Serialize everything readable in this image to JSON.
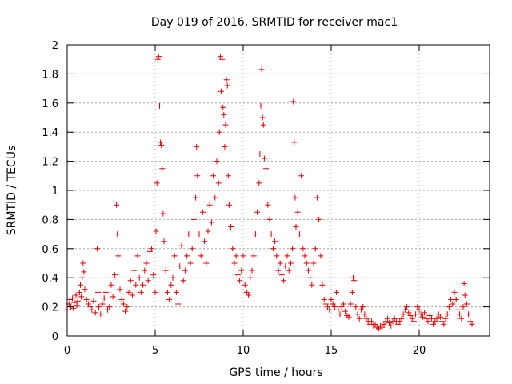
{
  "chart_data": {
    "type": "scatter",
    "title": "Day 019 of 2016, SRMTID for receiver mac1",
    "xlabel": "GPS time / hours",
    "ylabel": "SRMTID / TECUs",
    "xlim": [
      0,
      24
    ],
    "ylim": [
      0,
      2
    ],
    "xticks": [
      0,
      5,
      10,
      15,
      20
    ],
    "xtick_labels": [
      "0",
      "5",
      "10",
      "15",
      "20"
    ],
    "yticks": [
      0,
      0.2,
      0.4,
      0.6,
      0.8,
      1.0,
      1.2,
      1.4,
      1.6,
      1.8,
      2.0
    ],
    "ytick_labels": [
      "0",
      "0.2",
      "0.4",
      "0.6",
      "0.8",
      "1",
      "1.2",
      "1.4",
      "1.6",
      "1.8",
      "2"
    ],
    "grid": true,
    "marker": "+",
    "color": "#e00000",
    "series": [
      {
        "name": "SRMTID",
        "points": [
          [
            0.0,
            0.18
          ],
          [
            0.1,
            0.22
          ],
          [
            0.15,
            0.25
          ],
          [
            0.2,
            0.2
          ],
          [
            0.3,
            0.26
          ],
          [
            0.35,
            0.19
          ],
          [
            0.4,
            0.23
          ],
          [
            0.5,
            0.28
          ],
          [
            0.55,
            0.21
          ],
          [
            0.6,
            0.24
          ],
          [
            0.7,
            0.3
          ],
          [
            0.75,
            0.35
          ],
          [
            0.8,
            0.27
          ],
          [
            0.85,
            0.4
          ],
          [
            0.9,
            0.5
          ],
          [
            0.95,
            0.44
          ],
          [
            1.0,
            0.32
          ],
          [
            1.1,
            0.25
          ],
          [
            1.2,
            0.22
          ],
          [
            1.3,
            0.2
          ],
          [
            1.4,
            0.18
          ],
          [
            1.5,
            0.24
          ],
          [
            1.6,
            0.16
          ],
          [
            1.7,
            0.6
          ],
          [
            1.75,
            0.3
          ],
          [
            1.8,
            0.2
          ],
          [
            1.9,
            0.15
          ],
          [
            2.0,
            0.22
          ],
          [
            2.1,
            0.26
          ],
          [
            2.2,
            0.3
          ],
          [
            2.3,
            0.18
          ],
          [
            2.4,
            0.2
          ],
          [
            2.5,
            0.35
          ],
          [
            2.6,
            0.27
          ],
          [
            2.7,
            0.42
          ],
          [
            2.8,
            0.9
          ],
          [
            2.85,
            0.7
          ],
          [
            2.9,
            0.55
          ],
          [
            3.0,
            0.32
          ],
          [
            3.1,
            0.25
          ],
          [
            3.2,
            0.22
          ],
          [
            3.3,
            0.17
          ],
          [
            3.4,
            0.2
          ],
          [
            3.5,
            0.3
          ],
          [
            3.6,
            0.38
          ],
          [
            3.7,
            0.28
          ],
          [
            3.8,
            0.45
          ],
          [
            3.9,
            0.35
          ],
          [
            4.0,
            0.55
          ],
          [
            4.1,
            0.4
          ],
          [
            4.2,
            0.3
          ],
          [
            4.3,
            0.35
          ],
          [
            4.4,
            0.45
          ],
          [
            4.5,
            0.5
          ],
          [
            4.6,
            0.38
          ],
          [
            4.7,
            0.58
          ],
          [
            4.8,
            0.6
          ],
          [
            4.9,
            0.42
          ],
          [
            5.0,
            0.3
          ],
          [
            5.05,
            0.72
          ],
          [
            5.1,
            1.05
          ],
          [
            5.15,
            1.9
          ],
          [
            5.2,
            1.92
          ],
          [
            5.25,
            1.58
          ],
          [
            5.3,
            1.33
          ],
          [
            5.35,
            1.31
          ],
          [
            5.4,
            1.15
          ],
          [
            5.45,
            0.84
          ],
          [
            5.5,
            0.65
          ],
          [
            5.6,
            0.45
          ],
          [
            5.7,
            0.3
          ],
          [
            5.8,
            0.25
          ],
          [
            5.9,
            0.35
          ],
          [
            6.0,
            0.4
          ],
          [
            6.1,
            0.55
          ],
          [
            6.2,
            0.3
          ],
          [
            6.3,
            0.22
          ],
          [
            6.4,
            0.48
          ],
          [
            6.5,
            0.62
          ],
          [
            6.6,
            0.38
          ],
          [
            6.7,
            0.45
          ],
          [
            6.8,
            0.55
          ],
          [
            6.9,
            0.7
          ],
          [
            7.0,
            0.5
          ],
          [
            7.1,
            0.6
          ],
          [
            7.2,
            0.8
          ],
          [
            7.3,
            0.95
          ],
          [
            7.35,
            1.3
          ],
          [
            7.4,
            1.1
          ],
          [
            7.5,
            0.7
          ],
          [
            7.6,
            0.55
          ],
          [
            7.7,
            0.85
          ],
          [
            7.8,
            0.65
          ],
          [
            7.9,
            0.5
          ],
          [
            8.0,
            0.72
          ],
          [
            8.1,
            0.9
          ],
          [
            8.2,
            0.78
          ],
          [
            8.3,
            1.1
          ],
          [
            8.4,
            0.95
          ],
          [
            8.5,
            1.2
          ],
          [
            8.6,
            1.05
          ],
          [
            8.65,
            1.4
          ],
          [
            8.7,
            1.92
          ],
          [
            8.75,
            1.68
          ],
          [
            8.8,
            1.9
          ],
          [
            8.85,
            1.57
          ],
          [
            8.9,
            1.52
          ],
          [
            8.95,
            1.3
          ],
          [
            9.0,
            1.45
          ],
          [
            9.05,
            1.76
          ],
          [
            9.1,
            1.72
          ],
          [
            9.15,
            1.1
          ],
          [
            9.2,
            0.9
          ],
          [
            9.3,
            0.75
          ],
          [
            9.4,
            0.6
          ],
          [
            9.5,
            0.5
          ],
          [
            9.6,
            0.55
          ],
          [
            9.7,
            0.42
          ],
          [
            9.8,
            0.38
          ],
          [
            9.9,
            0.45
          ],
          [
            10.0,
            0.55
          ],
          [
            10.1,
            0.35
          ],
          [
            10.2,
            0.3
          ],
          [
            10.3,
            0.28
          ],
          [
            10.4,
            0.4
          ],
          [
            10.5,
            0.45
          ],
          [
            10.6,
            0.55
          ],
          [
            10.7,
            0.7
          ],
          [
            10.8,
            0.85
          ],
          [
            10.9,
            1.05
          ],
          [
            10.95,
            1.25
          ],
          [
            11.0,
            1.58
          ],
          [
            11.05,
            1.83
          ],
          [
            11.1,
            1.5
          ],
          [
            11.15,
            1.45
          ],
          [
            11.2,
            1.22
          ],
          [
            11.3,
            1.15
          ],
          [
            11.4,
            0.9
          ],
          [
            11.5,
            0.8
          ],
          [
            11.6,
            0.7
          ],
          [
            11.7,
            0.6
          ],
          [
            11.8,
            0.65
          ],
          [
            11.9,
            0.55
          ],
          [
            12.0,
            0.45
          ],
          [
            12.1,
            0.5
          ],
          [
            12.2,
            0.42
          ],
          [
            12.3,
            0.38
          ],
          [
            12.4,
            0.48
          ],
          [
            12.5,
            0.55
          ],
          [
            12.6,
            0.45
          ],
          [
            12.7,
            0.5
          ],
          [
            12.8,
            0.6
          ],
          [
            12.85,
            1.61
          ],
          [
            12.9,
            1.33
          ],
          [
            12.95,
            0.95
          ],
          [
            13.0,
            0.75
          ],
          [
            13.1,
            0.85
          ],
          [
            13.2,
            0.7
          ],
          [
            13.3,
            1.1
          ],
          [
            13.4,
            0.6
          ],
          [
            13.5,
            0.55
          ],
          [
            13.6,
            0.5
          ],
          [
            13.7,
            0.45
          ],
          [
            13.8,
            0.4
          ],
          [
            13.9,
            0.35
          ],
          [
            14.0,
            0.5
          ],
          [
            14.1,
            0.6
          ],
          [
            14.2,
            0.95
          ],
          [
            14.3,
            0.8
          ],
          [
            14.4,
            0.55
          ],
          [
            14.5,
            0.35
          ],
          [
            14.6,
            0.25
          ],
          [
            14.7,
            0.22
          ],
          [
            14.8,
            0.2
          ],
          [
            14.9,
            0.18
          ],
          [
            15.0,
            0.25
          ],
          [
            15.1,
            0.22
          ],
          [
            15.2,
            0.2
          ],
          [
            15.3,
            0.3
          ],
          [
            15.4,
            0.18
          ],
          [
            15.5,
            0.15
          ],
          [
            15.6,
            0.2
          ],
          [
            15.7,
            0.22
          ],
          [
            15.8,
            0.17
          ],
          [
            15.9,
            0.14
          ],
          [
            16.0,
            0.13
          ],
          [
            16.1,
            0.22
          ],
          [
            16.2,
            0.3
          ],
          [
            16.25,
            0.4
          ],
          [
            16.3,
            0.38
          ],
          [
            16.4,
            0.2
          ],
          [
            16.5,
            0.15
          ],
          [
            16.6,
            0.12
          ],
          [
            16.7,
            0.18
          ],
          [
            16.8,
            0.2
          ],
          [
            16.9,
            0.15
          ],
          [
            17.0,
            0.12
          ],
          [
            17.1,
            0.1
          ],
          [
            17.2,
            0.08
          ],
          [
            17.3,
            0.1
          ],
          [
            17.4,
            0.07
          ],
          [
            17.5,
            0.08
          ],
          [
            17.6,
            0.06
          ],
          [
            17.7,
            0.05
          ],
          [
            17.8,
            0.07
          ],
          [
            17.9,
            0.06
          ],
          [
            18.0,
            0.08
          ],
          [
            18.1,
            0.1
          ],
          [
            18.2,
            0.12
          ],
          [
            18.3,
            0.09
          ],
          [
            18.4,
            0.07
          ],
          [
            18.5,
            0.1
          ],
          [
            18.6,
            0.12
          ],
          [
            18.7,
            0.1
          ],
          [
            18.8,
            0.08
          ],
          [
            18.9,
            0.1
          ],
          [
            19.0,
            0.12
          ],
          [
            19.1,
            0.15
          ],
          [
            19.2,
            0.18
          ],
          [
            19.3,
            0.2
          ],
          [
            19.4,
            0.16
          ],
          [
            19.5,
            0.14
          ],
          [
            19.6,
            0.12
          ],
          [
            19.7,
            0.1
          ],
          [
            19.8,
            0.15
          ],
          [
            19.9,
            0.2
          ],
          [
            20.0,
            0.18
          ],
          [
            20.1,
            0.15
          ],
          [
            20.2,
            0.13
          ],
          [
            20.3,
            0.16
          ],
          [
            20.4,
            0.12
          ],
          [
            20.5,
            0.1
          ],
          [
            20.6,
            0.14
          ],
          [
            20.7,
            0.12
          ],
          [
            20.8,
            0.08
          ],
          [
            20.9,
            0.1
          ],
          [
            21.0,
            0.12
          ],
          [
            21.1,
            0.15
          ],
          [
            21.2,
            0.13
          ],
          [
            21.3,
            0.1
          ],
          [
            21.4,
            0.08
          ],
          [
            21.5,
            0.12
          ],
          [
            21.6,
            0.15
          ],
          [
            21.7,
            0.2
          ],
          [
            21.8,
            0.25
          ],
          [
            21.9,
            0.22
          ],
          [
            22.0,
            0.3
          ],
          [
            22.1,
            0.25
          ],
          [
            22.2,
            0.18
          ],
          [
            22.3,
            0.15
          ],
          [
            22.4,
            0.12
          ],
          [
            22.5,
            0.2
          ],
          [
            22.55,
            0.36
          ],
          [
            22.6,
            0.28
          ],
          [
            22.7,
            0.22
          ],
          [
            22.8,
            0.15
          ],
          [
            22.9,
            0.1
          ],
          [
            23.0,
            0.08
          ]
        ]
      }
    ]
  }
}
